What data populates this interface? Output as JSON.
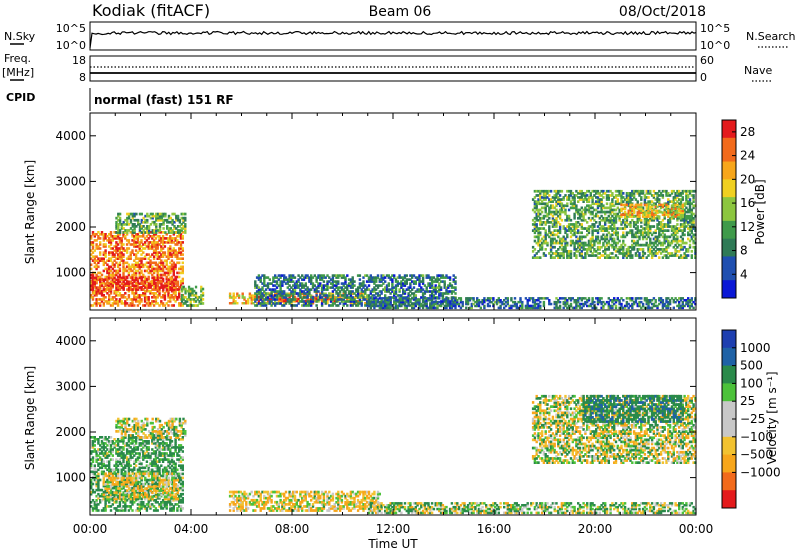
{
  "header": {
    "station_title": "Kodiak (fitACF)",
    "beam": "Beam 06",
    "date": "08/Oct/2018"
  },
  "top_panels": {
    "nsky_label": "N.Sky",
    "nsky_ticks": [
      "10^5",
      "10^0"
    ],
    "nsearch_label": "N.Search",
    "nsearch_ticks": [
      "10^5",
      "10^0"
    ],
    "freq_label": "Freq.",
    "freq_unit": "[MHz]",
    "freq_ticks": [
      "18",
      "8"
    ],
    "nave_label": "Nave",
    "nave_ticks": [
      "60",
      "0"
    ],
    "cpid_label": "CPID",
    "cpid_value": "normal (fast) 151 RF"
  },
  "colors": {
    "power_scale": [
      "#0b18d6",
      "#1f4fb0",
      "#2f7a56",
      "#3f9a4a",
      "#8cc63f",
      "#f0d020",
      "#f7a61b",
      "#f26a1b",
      "#e41a1c"
    ],
    "velocity_scale": [
      "#e41a1c",
      "#f26a1b",
      "#f7a61b",
      "#f2c230",
      "#c8c8c8",
      "#c8c8c8",
      "#4cc23a",
      "#2a8a4a",
      "#1f62a6",
      "#1e3fb0"
    ]
  },
  "chart_data": [
    {
      "type": "heatmap",
      "name": "power",
      "xlabel": "",
      "ylabel": "Slant Range [km]",
      "yticks": [
        "4000",
        "3000",
        "2000",
        "1000"
      ],
      "ylim": [
        180,
        4500
      ],
      "xlim_hours": [
        0,
        24
      ],
      "colorbar_label": "Power [dB]",
      "colorbar_ticks": [
        "28",
        "24",
        "20",
        "16",
        "12",
        "8",
        "4"
      ],
      "colorbar_range": [
        0,
        30
      ],
      "regions": [
        {
          "t0": 0.0,
          "t1": 3.7,
          "r0": 250,
          "r1": 1900,
          "level": 24
        },
        {
          "t0": 0.0,
          "t1": 3.5,
          "r0": 600,
          "r1": 900,
          "level": 28
        },
        {
          "t0": 1.0,
          "t1": 3.8,
          "r0": 1850,
          "r1": 2300,
          "level": 12
        },
        {
          "t0": 3.6,
          "t1": 4.5,
          "r0": 250,
          "r1": 700,
          "level": 14
        },
        {
          "t0": 5.5,
          "t1": 11.0,
          "r0": 300,
          "r1": 550,
          "level": 20
        },
        {
          "t0": 6.5,
          "t1": 10.0,
          "r0": 350,
          "r1": 480,
          "level": 26
        },
        {
          "t0": 6.5,
          "t1": 14.5,
          "r0": 250,
          "r1": 950,
          "level": 8
        },
        {
          "t0": 11.0,
          "t1": 24.0,
          "r0": 200,
          "r1": 450,
          "level": 8
        },
        {
          "t0": 17.5,
          "t1": 24.0,
          "r0": 1300,
          "r1": 2800,
          "level": 12
        },
        {
          "t0": 21.0,
          "t1": 23.5,
          "r0": 2200,
          "r1": 2500,
          "level": 20
        }
      ]
    },
    {
      "type": "heatmap",
      "name": "velocity",
      "xlabel": "Time UT",
      "ylabel": "Slant Range [km]",
      "xticks": [
        "00:00",
        "04:00",
        "08:00",
        "12:00",
        "16:00",
        "20:00",
        "00:00"
      ],
      "yticks": [
        "4000",
        "3000",
        "2000",
        "1000"
      ],
      "ylim": [
        180,
        4500
      ],
      "xlim_hours": [
        0,
        24
      ],
      "colorbar_label": "Velocity [m s⁻¹]",
      "colorbar_ticks": [
        "1000",
        "500",
        "100",
        "25",
        "−25",
        "−100",
        "−500",
        "−1000"
      ],
      "regions": [
        {
          "t0": 0.0,
          "t1": 3.7,
          "r0": 250,
          "r1": 1900,
          "level": 150
        },
        {
          "t0": 0.5,
          "t1": 3.5,
          "r0": 500,
          "r1": 1100,
          "level": -60
        },
        {
          "t0": 1.0,
          "t1": 3.8,
          "r0": 1850,
          "r1": 2300,
          "level": 0
        },
        {
          "t0": 5.5,
          "t1": 11.5,
          "r0": 250,
          "r1": 700,
          "level": -80
        },
        {
          "t0": 11.0,
          "t1": 24.0,
          "r0": 200,
          "r1": 450,
          "level": 60
        },
        {
          "t0": 17.5,
          "t1": 24.0,
          "r0": 1300,
          "r1": 2800,
          "level": 0
        },
        {
          "t0": 19.5,
          "t1": 23.5,
          "r0": 2200,
          "r1": 2800,
          "level": 400
        }
      ]
    }
  ]
}
